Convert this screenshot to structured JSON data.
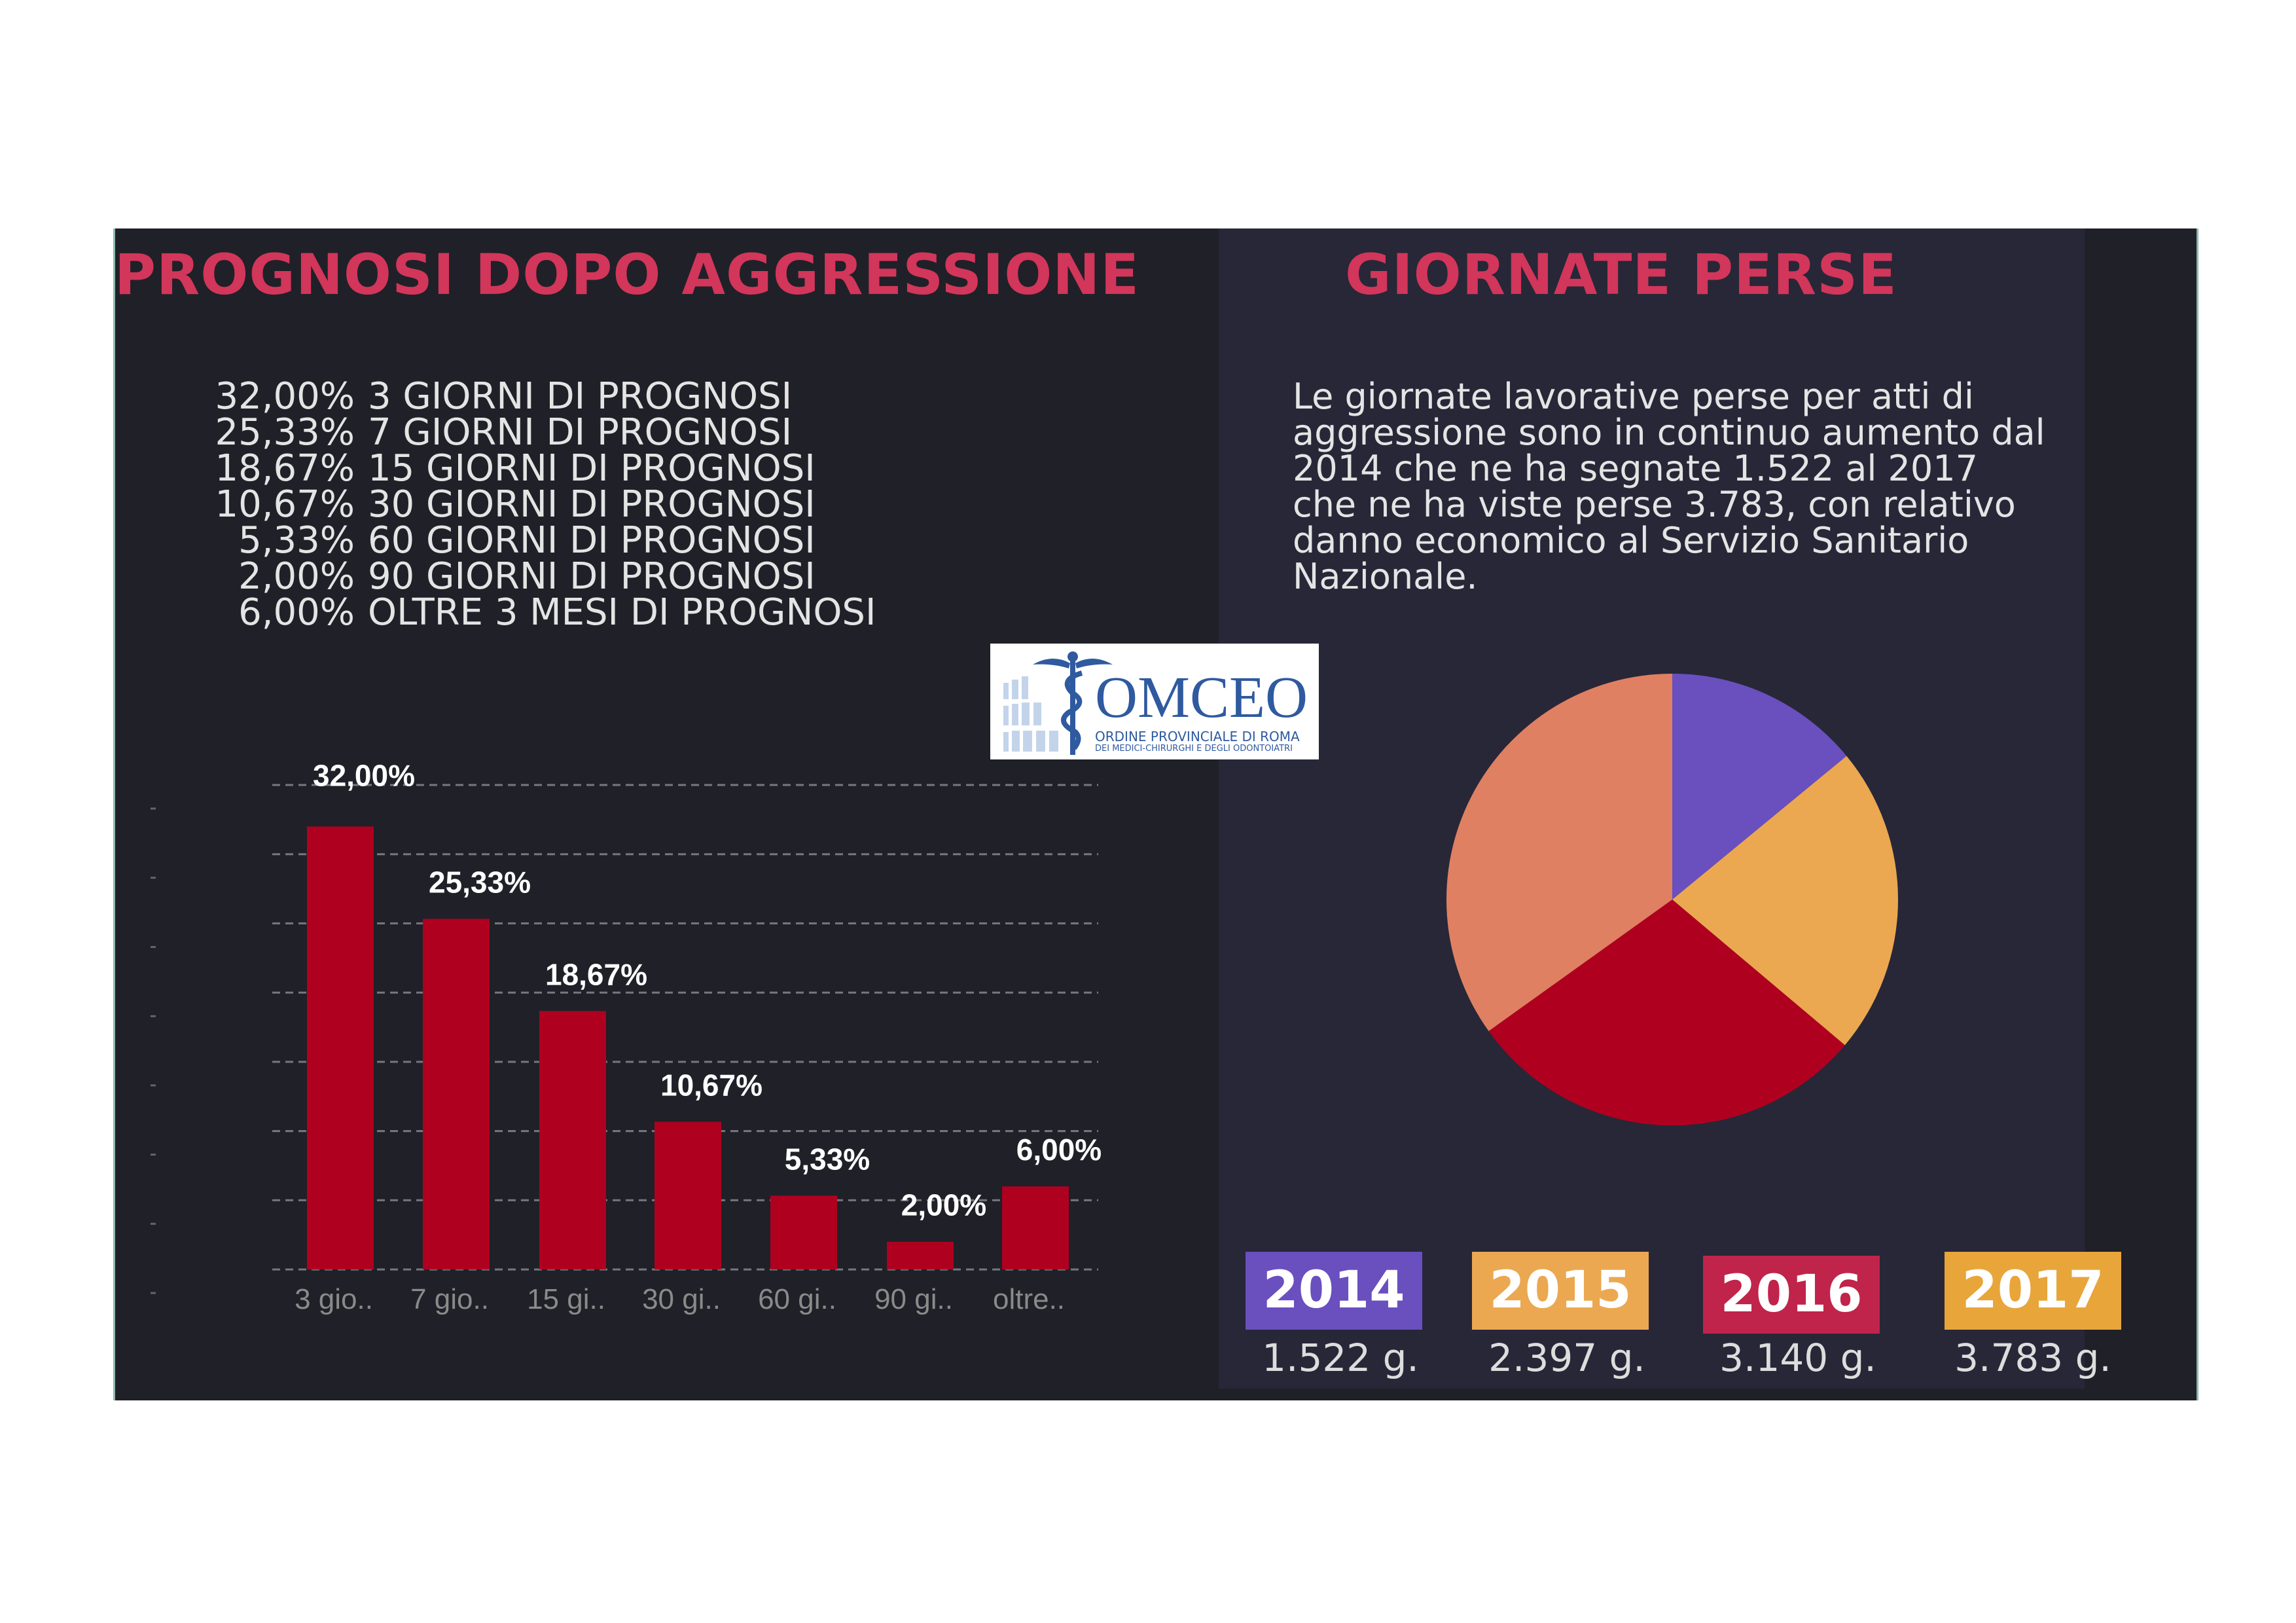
{
  "left_title": "PROGNOSI DOPO AGGRESSIONE",
  "right_title": "GIORNATE PERSE",
  "prognosis_list": [
    {
      "pct": "32,00%",
      "label": "3 GIORNI DI PROGNOSI"
    },
    {
      "pct": "25,33%",
      "label": "7 GIORNI DI PROGNOSI"
    },
    {
      "pct": "18,67%",
      "label": "15 GIORNI DI PROGNOSI"
    },
    {
      "pct": "10,67%",
      "label": "30 GIORNI DI PROGNOSI"
    },
    {
      "pct": "5,33%",
      "label": "60 GIORNI DI PROGNOSI"
    },
    {
      "pct": "2,00%",
      "label": "90 GIORNI DI PROGNOSI"
    },
    {
      "pct": "6,00%",
      "label": "OLTRE 3 MESI DI PROGNOSI"
    }
  ],
  "paragraph": "Le giornate lavorative perse per atti di aggressione sono in continuo aumento dal 2014 che ne ha segnate 1.522 al 2017 che ne ha viste perse 3.783, con relativo danno economico al Servizio Sanitario Nazionale.",
  "logo": {
    "name": "OMCEO",
    "line1": "ORDINE PROVINCIALE DI ROMA",
    "line2": "DEI MEDICI-CHIRURGHI E DEGLI ODONTOIATRI"
  },
  "colors": {
    "bar": "#b00020",
    "title": "#d2365a",
    "grid": "#77777f"
  },
  "chart_data": [
    {
      "type": "bar",
      "title": "PROGNOSI DOPO AGGRESSIONE",
      "categories": [
        "3 gio..",
        "7 gio..",
        "15 gi..",
        "30 gi..",
        "60 gi..",
        "90 gi..",
        "oltre.."
      ],
      "values": [
        32.0,
        25.33,
        18.67,
        10.67,
        5.33,
        2.0,
        6.0
      ],
      "data_labels": [
        "32,00%",
        "25,33%",
        "18,67%",
        "10,67%",
        "5,33%",
        "2,00%",
        "6,00%"
      ],
      "ylim": [
        0,
        35
      ],
      "grid": true,
      "xlabel": "",
      "ylabel": ""
    },
    {
      "type": "pie",
      "title": "GIORNATE PERSE",
      "categories": [
        "2014",
        "2015",
        "2016",
        "2017"
      ],
      "values": [
        1522,
        2397,
        3140,
        3783
      ],
      "value_labels": [
        "1.522 g.",
        "2.397 g.",
        "3.140 g.",
        "3.783 g."
      ],
      "colors": [
        "#6a4fbf",
        "#eba851",
        "#b00020",
        "#e08062"
      ],
      "label_colors": [
        "#6a4fbf",
        "#eba851",
        "#c0244a",
        "#e8a53a"
      ]
    }
  ]
}
